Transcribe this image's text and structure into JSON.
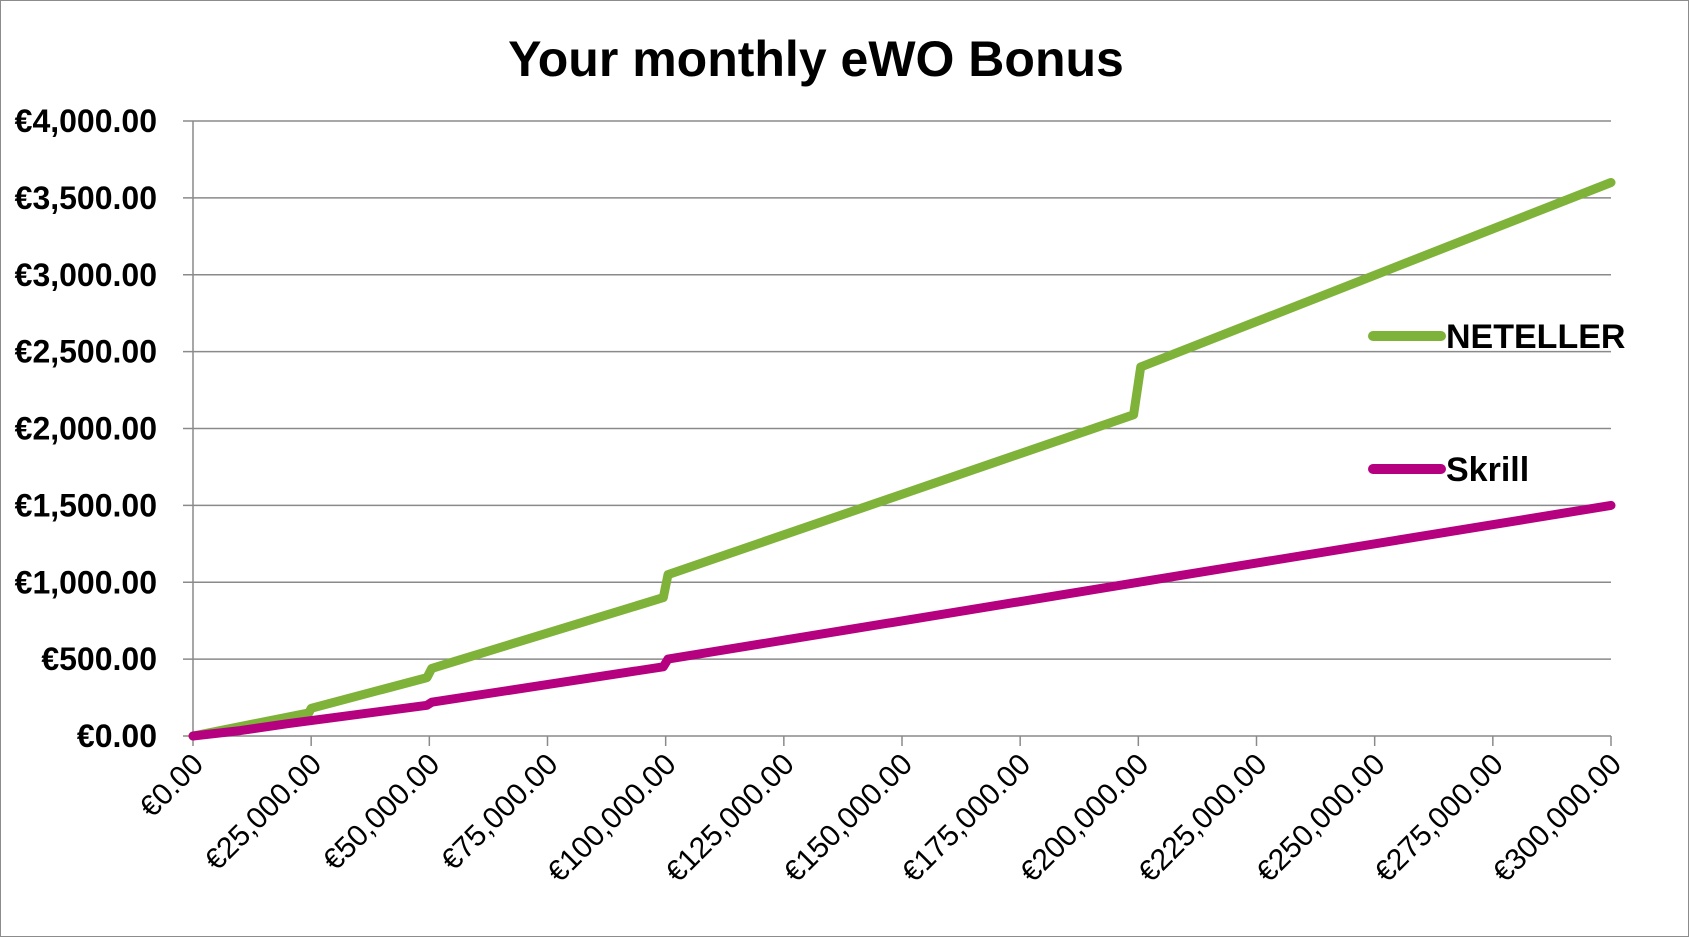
{
  "chart_data": {
    "type": "line",
    "title": "Your monthly eWO Bonus",
    "xlabel": "",
    "ylabel": "",
    "xlim": [
      0,
      300000
    ],
    "ylim": [
      0,
      4000
    ],
    "grid": true,
    "legend_position": "right",
    "x_tick_labels": [
      "€0.00",
      "€25,000.00",
      "€50,000.00",
      "€75,000.00",
      "€100,000.00",
      "€125,000.00",
      "€150,000.00",
      "€175,000.00",
      "€200,000.00",
      "€225,000.00",
      "€250,000.00",
      "€275,000.00",
      "€300,000.00"
    ],
    "x_ticks": [
      0,
      25000,
      50000,
      75000,
      100000,
      125000,
      150000,
      175000,
      200000,
      225000,
      250000,
      275000,
      300000
    ],
    "y_tick_labels": [
      "€0.00",
      "€500.00",
      "€1,000.00",
      "€1,500.00",
      "€2,000.00",
      "€2,500.00",
      "€3,000.00",
      "€3,500.00",
      "€4,000.00"
    ],
    "y_ticks": [
      0,
      500,
      1000,
      1500,
      2000,
      2500,
      3000,
      3500,
      4000
    ],
    "series": [
      {
        "name": "NETELLER",
        "color": "#7fb239",
        "points": [
          [
            0,
            0
          ],
          [
            24500,
            150
          ],
          [
            25000,
            180
          ],
          [
            49500,
            380
          ],
          [
            50500,
            440
          ],
          [
            99500,
            900
          ],
          [
            100500,
            1050
          ],
          [
            199000,
            2090
          ],
          [
            200500,
            2400
          ],
          [
            300000,
            3600
          ]
        ]
      },
      {
        "name": "Skrill",
        "color": "#b5007f",
        "points": [
          [
            0,
            0
          ],
          [
            10000,
            35
          ],
          [
            20000,
            80
          ],
          [
            49500,
            200
          ],
          [
            50500,
            220
          ],
          [
            99500,
            450
          ],
          [
            100500,
            500
          ],
          [
            200000,
            1000
          ],
          [
            300000,
            1500
          ]
        ]
      }
    ]
  }
}
